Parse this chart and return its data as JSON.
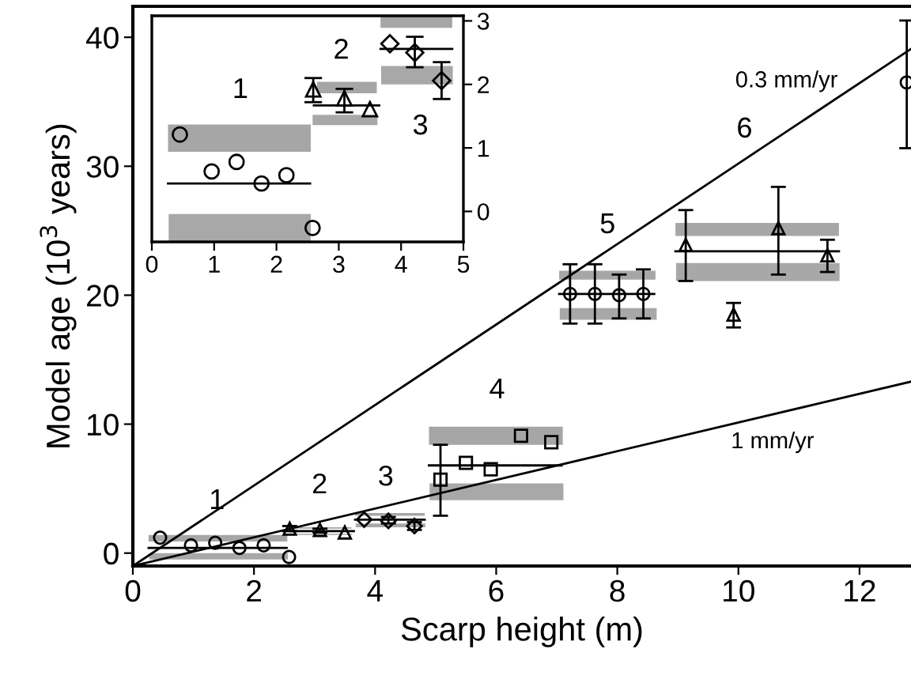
{
  "chart_data": [
    {
      "type": "scatter",
      "xlim": [
        0,
        5
      ],
      "ylim": [
        -0.48,
        3.08
      ],
      "xticks": [
        0,
        1,
        2,
        3,
        4,
        5
      ],
      "yticks": [
        0,
        1,
        2,
        3
      ],
      "series": [
        {
          "type": "line",
          "color": "#a6a6a6",
          "x": [
            0.26,
            2.55
          ],
          "values": [
            null,
            null
          ],
          "lower": [
            0.94,
            0.94
          ],
          "upper": [
            1.37,
            1.37
          ]
        },
        {
          "type": "line",
          "color": "#a6a6a6",
          "x": [
            2.65,
            3.61
          ],
          "values": [
            null,
            null
          ],
          "lower": [
            1.86,
            1.86
          ],
          "upper": [
            2.04,
            2.04
          ]
        },
        {
          "type": "line",
          "color": "#a6a6a6",
          "x": [
            3.67,
            4.82
          ],
          "values": [
            null,
            null
          ],
          "lower": [
            2.89,
            2.89
          ],
          "upper": [
            3.08,
            3.08
          ]
        },
        {
          "type": "line",
          "color": "#a8a8a8",
          "x": [
            0.27,
            2.55
          ],
          "values": [
            null,
            null
          ],
          "lower": [
            -0.48,
            -0.48
          ],
          "upper": [
            -0.04,
            -0.04
          ]
        },
        {
          "type": "line",
          "color": "#a8a8a8",
          "x": [
            2.58,
            3.62
          ],
          "values": [
            null,
            null
          ],
          "lower": [
            1.36,
            1.36
          ],
          "upper": [
            1.52,
            1.52
          ]
        },
        {
          "type": "line",
          "color": "#a8a8a8",
          "x": [
            3.68,
            4.83
          ],
          "values": [
            null,
            null
          ],
          "lower": [
            2.0,
            2.0
          ],
          "upper": [
            2.29,
            2.29
          ]
        },
        {
          "type": "line",
          "color": "#000000",
          "line_style": "solid",
          "x": [
            0.26,
            2.54
          ],
          "values": [
            0.44,
            0.44
          ]
        },
        {
          "type": "line",
          "color": "#000000",
          "line_style": "solid",
          "x": [
            2.6,
            3.65
          ],
          "values": [
            1.67,
            1.67
          ]
        },
        {
          "type": "line",
          "color": "#000000",
          "line_style": "solid",
          "x": [
            3.67,
            4.82
          ],
          "values": [
            2.56,
            2.56
          ]
        },
        {
          "marker": "circle",
          "color": "#000000",
          "x": [
            0.45,
            0.96,
            1.36,
            1.76,
            2.16,
            2.58
          ],
          "values": [
            1.21,
            0.63,
            0.78,
            0.44,
            0.57,
            -0.26
          ]
        },
        {
          "marker": "triangle",
          "color": "#000000",
          "x": [
            2.59,
            3.09,
            3.5
          ],
          "values": [
            1.92,
            1.78,
            1.61
          ],
          "errors": [
            [
              1.72,
              2.1
            ],
            [
              1.56,
              1.93
            ],
            null
          ]
        },
        {
          "marker": "diamond",
          "color": "#000000",
          "x": [
            3.82,
            4.22,
            4.65
          ],
          "values": [
            2.64,
            2.5,
            2.06
          ],
          "errors": [
            null,
            [
              2.27,
              2.75
            ],
            [
              1.77,
              2.35
            ]
          ]
        }
      ],
      "annotations": [
        "1",
        "2",
        "3"
      ]
    },
    {
      "type": "scatter",
      "xlabel": "Scarp height (m)",
      "ylabel": "Model age (10$^{3}$ years)",
      "xlim": [
        0,
        12.85
      ],
      "ylim": [
        -1,
        42.4
      ],
      "xticks": [
        0,
        2,
        4,
        6,
        8,
        10,
        12
      ],
      "yticks": [
        0,
        10,
        20,
        30,
        40
      ],
      "series": [
        {
          "type": "line",
          "color": "#a6a6a6",
          "x": [
            0.26,
            2.55
          ],
          "values": [
            null,
            null
          ],
          "lower": [
            0.9,
            0.9
          ],
          "upper": [
            1.4,
            1.4
          ]
        },
        {
          "type": "line",
          "color": "#a6a6a6",
          "x": [
            2.65,
            3.61
          ],
          "values": [
            null,
            null
          ],
          "lower": [
            1.9,
            1.9
          ],
          "upper": [
            2.0,
            2.0
          ]
        },
        {
          "type": "line",
          "color": "#a6a6a6",
          "x": [
            3.67,
            4.82
          ],
          "values": [
            null,
            null
          ],
          "lower": [
            2.9,
            2.9
          ],
          "upper": [
            3.1,
            3.1
          ]
        },
        {
          "type": "line",
          "color": "#a6a6a6",
          "x": [
            4.89,
            7.1
          ],
          "values": [
            null,
            null
          ],
          "lower": [
            8.4,
            8.4
          ],
          "upper": [
            9.8,
            9.8
          ]
        },
        {
          "type": "line",
          "color": "#a6a6a6",
          "x": [
            7.04,
            8.63
          ],
          "values": [
            null,
            null
          ],
          "lower": [
            21.2,
            21.2
          ],
          "upper": [
            21.9,
            21.9
          ]
        },
        {
          "type": "line",
          "color": "#a6a6a6",
          "x": [
            8.96,
            11.66
          ],
          "values": [
            null,
            null
          ],
          "lower": [
            24.6,
            24.6
          ],
          "upper": [
            25.6,
            25.6
          ]
        },
        {
          "type": "line",
          "color": "#a8a8a8",
          "x": [
            0.27,
            2.56
          ],
          "values": [
            null,
            null
          ],
          "lower": [
            -0.5,
            -0.5
          ],
          "upper": [
            0.0,
            0.0
          ]
        },
        {
          "type": "line",
          "color": "#a8a8a8",
          "x": [
            2.58,
            3.62
          ],
          "values": [
            null,
            null
          ],
          "lower": [
            1.4,
            1.4
          ],
          "upper": [
            1.5,
            1.5
          ]
        },
        {
          "type": "line",
          "color": "#a8a8a8",
          "x": [
            3.68,
            4.83
          ],
          "values": [
            null,
            null
          ],
          "lower": [
            2.0,
            2.0
          ],
          "upper": [
            2.3,
            2.3
          ]
        },
        {
          "type": "line",
          "color": "#a8a8a8",
          "x": [
            4.9,
            7.11
          ],
          "values": [
            null,
            null
          ],
          "lower": [
            4.1,
            4.1
          ],
          "upper": [
            5.4,
            5.4
          ]
        },
        {
          "type": "line",
          "color": "#a8a8a8",
          "x": [
            7.05,
            8.65
          ],
          "values": [
            null,
            null
          ],
          "lower": [
            18.1,
            18.1
          ],
          "upper": [
            19.0,
            19.0
          ]
        },
        {
          "type": "line",
          "color": "#a8a8a8",
          "x": [
            8.97,
            11.67
          ],
          "values": [
            null,
            null
          ],
          "lower": [
            21.1,
            21.1
          ],
          "upper": [
            22.5,
            22.5
          ]
        },
        {
          "type": "line",
          "color": "#000000",
          "line_style": "solid",
          "x": [
            0,
            12.85
          ],
          "values": [
            -1,
            39.1
          ]
        },
        {
          "type": "line",
          "color": "#000000",
          "line_style": "solid",
          "x": [
            0,
            12.85
          ],
          "values": [
            -1,
            13.3
          ]
        },
        {
          "type": "line",
          "color": "#000000",
          "line_style": "solid",
          "x": [
            0.26,
            2.54
          ],
          "values": [
            0.4,
            0.4
          ]
        },
        {
          "type": "line",
          "color": "#000000",
          "line_style": "solid",
          "x": [
            2.6,
            3.65
          ],
          "values": [
            1.7,
            1.7
          ]
        },
        {
          "type": "line",
          "color": "#000000",
          "line_style": "solid",
          "x": [
            3.67,
            4.82
          ],
          "values": [
            2.6,
            2.6
          ]
        },
        {
          "type": "line",
          "color": "#000000",
          "line_style": "solid",
          "x": [
            4.89,
            7.08
          ],
          "values": [
            6.8,
            6.8
          ]
        },
        {
          "type": "line",
          "color": "#000000",
          "line_style": "solid",
          "x": [
            7.04,
            8.61
          ],
          "values": [
            20.1,
            20.1
          ]
        },
        {
          "type": "line",
          "color": "#000000",
          "line_style": "solid",
          "x": [
            8.96,
            11.66
          ],
          "values": [
            23.4,
            23.4
          ]
        },
        {
          "marker": "circle",
          "color": "#000000",
          "x": [
            0.45,
            0.96,
            1.36,
            1.76,
            2.16,
            2.58
          ],
          "values": [
            1.2,
            0.6,
            0.8,
            0.4,
            0.6,
            -0.3
          ]
        },
        {
          "marker": "triangle",
          "color": "#000000",
          "x": [
            2.59,
            3.09,
            3.5
          ],
          "values": [
            1.9,
            1.8,
            1.6
          ],
          "errors": [
            [
              1.7,
              2.1
            ],
            [
              1.6,
              1.9
            ],
            null
          ]
        },
        {
          "marker": "diamond",
          "color": "#000000",
          "x": [
            3.82,
            4.22,
            4.65
          ],
          "values": [
            2.6,
            2.5,
            2.1
          ],
          "errors": [
            null,
            [
              2.3,
              2.8
            ],
            [
              1.8,
              2.4
            ]
          ]
        },
        {
          "marker": "square",
          "color": "#000000",
          "x": [
            5.08,
            5.5,
            5.91,
            6.41,
            6.91
          ],
          "values": [
            5.7,
            7.0,
            6.5,
            9.1,
            8.6
          ],
          "errors": [
            [
              2.9,
              8.4
            ],
            null,
            null,
            null,
            null
          ]
        },
        {
          "marker": "circle",
          "color": "#000000",
          "x": [
            7.22,
            7.63,
            8.03,
            8.43
          ],
          "values": [
            20.1,
            20.1,
            20.0,
            20.1
          ],
          "errors": [
            [
              17.8,
              22.4
            ],
            [
              17.8,
              22.4
            ],
            [
              18.2,
              21.6
            ],
            [
              18.2,
              22.0
            ]
          ]
        },
        {
          "marker": "triangle",
          "color": "#000000",
          "x": [
            9.13,
            9.92,
            10.66,
            11.47
          ],
          "values": [
            23.9,
            18.5,
            25.2,
            23.1
          ],
          "errors": [
            [
              21.1,
              26.6
            ],
            [
              17.5,
              19.4
            ],
            [
              21.6,
              28.4
            ],
            [
              21.8,
              24.3
            ]
          ]
        },
        {
          "marker": "circle",
          "color": "#000000",
          "x": [
            12.78
          ],
          "values": [
            36.5
          ],
          "errors": [
            [
              31.4,
              41.3
            ]
          ]
        }
      ],
      "annotations": [
        "0.3 mm/yr",
        "1 mm/yr",
        "1",
        "2",
        "3",
        "4",
        "5",
        "6"
      ]
    }
  ]
}
